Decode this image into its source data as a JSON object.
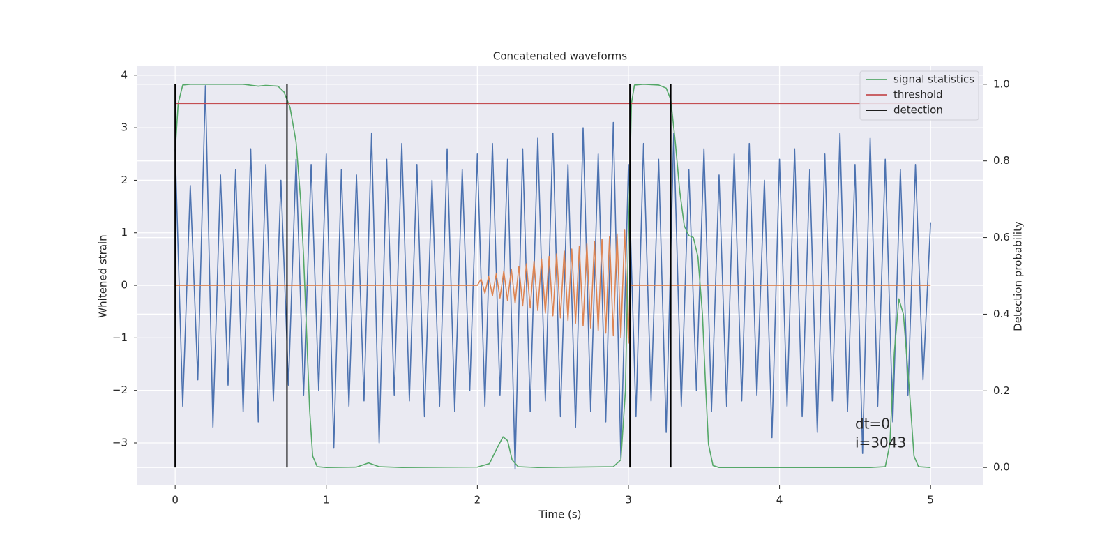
{
  "chart_data": {
    "type": "line",
    "title": "Concatenated waveforms",
    "xlabel": "Time (s)",
    "ylabel": "Whitened strain",
    "y2label": "Detection probability",
    "xlim": [
      -0.25,
      5.35
    ],
    "ylim": [
      -3.81,
      4.17
    ],
    "y2lim": [
      -0.047,
      1.047
    ],
    "xticks": [
      0,
      1,
      2,
      3,
      4,
      5
    ],
    "yticks": [
      {
        "value": -3,
        "label": "−3"
      },
      {
        "value": -2,
        "label": "−2"
      },
      {
        "value": -1,
        "label": "−1"
      },
      0,
      1,
      2,
      3,
      4
    ],
    "y2ticks": [
      {
        "value": 0,
        "label": "0.0"
      },
      0.2,
      0.4,
      0.6,
      0.8,
      {
        "value": 1,
        "label": "1.0"
      }
    ],
    "grid": true,
    "legend": "upper right",
    "annotations": [
      "dt=0",
      "i=3043"
    ],
    "series": [
      {
        "color": "#4c72b0",
        "x": [
          0,
          0.05,
          0.1,
          0.15,
          0.2,
          0.25,
          0.3,
          0.35,
          0.4,
          0.45,
          0.5,
          0.55,
          0.6,
          0.65,
          0.7,
          0.75,
          0.8,
          0.85,
          0.9,
          0.95,
          1.0,
          1.05,
          1.1,
          1.15,
          1.2,
          1.25,
          1.3,
          1.35,
          1.4,
          1.45,
          1.5,
          1.55,
          1.6,
          1.65,
          1.7,
          1.75,
          1.8,
          1.85,
          1.9,
          1.95,
          2.0,
          2.05,
          2.1,
          2.15,
          2.2,
          2.25,
          2.3,
          2.35,
          2.4,
          2.45,
          2.5,
          2.55,
          2.6,
          2.65,
          2.7,
          2.75,
          2.8,
          2.85,
          2.9,
          2.95,
          3.0,
          3.05,
          3.1,
          3.15,
          3.2,
          3.25,
          3.3,
          3.35,
          3.4,
          3.45,
          3.5,
          3.55,
          3.6,
          3.65,
          3.7,
          3.75,
          3.8,
          3.85,
          3.9,
          3.95,
          4.0,
          4.05,
          4.1,
          4.15,
          4.2,
          4.25,
          4.3,
          4.35,
          4.4,
          4.45,
          4.5,
          4.55,
          4.6,
          4.65,
          4.7,
          4.75,
          4.8,
          4.85,
          4.9,
          4.95,
          5.0
        ],
        "values": [
          2.6,
          -2.3,
          1.9,
          -1.8,
          3.8,
          -2.7,
          2.1,
          -1.9,
          2.2,
          -2.4,
          2.6,
          -2.6,
          2.3,
          -2.2,
          2.0,
          -1.9,
          2.4,
          -2.1,
          2.3,
          -2.0,
          2.5,
          -3.1,
          2.2,
          -2.3,
          2.1,
          -2.2,
          2.9,
          -3.0,
          2.4,
          -2.1,
          2.7,
          -2.2,
          2.3,
          -2.5,
          2.0,
          -2.3,
          2.6,
          -2.4,
          2.2,
          -2.0,
          2.5,
          -2.3,
          2.7,
          -2.1,
          2.4,
          -3.5,
          2.6,
          -2.4,
          2.8,
          -2.2,
          2.9,
          -2.5,
          2.3,
          -2.7,
          3.0,
          -2.4,
          2.5,
          -2.6,
          3.1,
          -3.3,
          2.3,
          -2.5,
          2.7,
          -2.2,
          2.4,
          -2.8,
          2.9,
          -2.3,
          2.2,
          -2.0,
          2.6,
          -2.4,
          2.1,
          -2.3,
          2.5,
          -2.2,
          2.7,
          -2.1,
          2.0,
          -2.9,
          2.4,
          -2.3,
          2.6,
          -2.5,
          2.2,
          -2.8,
          2.5,
          -2.2,
          2.9,
          -2.4,
          2.3,
          -3.2,
          2.8,
          -2.3,
          2.4,
          -2.6,
          2.2,
          -2.1,
          2.3,
          -1.8,
          1.2
        ]
      },
      {
        "color": "#dd8452",
        "x": [
          0,
          2.0,
          2.025,
          2.05,
          2.075,
          2.1,
          2.125,
          2.15,
          2.175,
          2.2,
          2.225,
          2.25,
          2.275,
          2.3,
          2.325,
          2.35,
          2.375,
          2.4,
          2.425,
          2.45,
          2.475,
          2.5,
          2.525,
          2.55,
          2.575,
          2.6,
          2.625,
          2.65,
          2.675,
          2.7,
          2.725,
          2.75,
          2.775,
          2.8,
          2.825,
          2.85,
          2.875,
          2.9,
          2.925,
          2.95,
          2.975,
          3.0,
          3.01,
          5.0
        ],
        "values": [
          0,
          0,
          0.12,
          -0.15,
          0.17,
          -0.2,
          0.22,
          -0.24,
          0.27,
          -0.29,
          0.31,
          -0.34,
          0.36,
          -0.39,
          0.41,
          -0.43,
          0.46,
          -0.48,
          0.5,
          -0.53,
          0.55,
          -0.58,
          0.6,
          -0.62,
          0.65,
          -0.67,
          0.69,
          -0.72,
          0.74,
          -0.77,
          0.79,
          -0.81,
          0.84,
          -0.86,
          0.88,
          -0.91,
          0.93,
          -0.96,
          0.98,
          -1.0,
          1.05,
          -1.1,
          0,
          0
        ]
      },
      {
        "name": "signal statistics",
        "color": "#55a868",
        "axis": "y2",
        "x": [
          0,
          0.02,
          0.05,
          0.1,
          0.45,
          0.55,
          0.6,
          0.68,
          0.72,
          0.76,
          0.8,
          0.83,
          0.85,
          0.87,
          0.89,
          0.91,
          0.94,
          1.0,
          1.2,
          1.28,
          1.35,
          1.5,
          2.0,
          2.08,
          2.13,
          2.17,
          2.2,
          2.23,
          2.27,
          2.4,
          2.9,
          2.95,
          2.98,
          3.0,
          3.02,
          3.04,
          3.1,
          3.2,
          3.25,
          3.28,
          3.31,
          3.34,
          3.37,
          3.4,
          3.43,
          3.46,
          3.49,
          3.51,
          3.53,
          3.56,
          3.6,
          4.6,
          4.7,
          4.73,
          4.76,
          4.79,
          4.82,
          4.86,
          4.89,
          4.92,
          5.0
        ],
        "values": [
          0.825,
          0.95,
          0.998,
          1.0,
          1.0,
          0.995,
          0.997,
          0.995,
          0.98,
          0.94,
          0.85,
          0.7,
          0.55,
          0.35,
          0.15,
          0.03,
          0.002,
          0,
          0.001,
          0.012,
          0.002,
          0,
          0.001,
          0.01,
          0.05,
          0.08,
          0.07,
          0.02,
          0.002,
          0,
          0.002,
          0.02,
          0.2,
          0.6,
          0.95,
          0.998,
          1.0,
          0.998,
          0.99,
          0.96,
          0.85,
          0.72,
          0.63,
          0.605,
          0.6,
          0.55,
          0.4,
          0.22,
          0.06,
          0.005,
          0,
          0,
          0.002,
          0.06,
          0.3,
          0.44,
          0.4,
          0.2,
          0.03,
          0.002,
          0
        ]
      },
      {
        "name": "threshold",
        "color": "#c44e52",
        "axis": "y2",
        "x": [
          0,
          5
        ],
        "values": [
          0.95,
          0.95
        ]
      }
    ],
    "detections": {
      "name": "detection",
      "color": "#000000",
      "x": [
        0,
        0.74,
        3.01,
        3.28
      ],
      "y2range": [
        0,
        1
      ]
    }
  }
}
